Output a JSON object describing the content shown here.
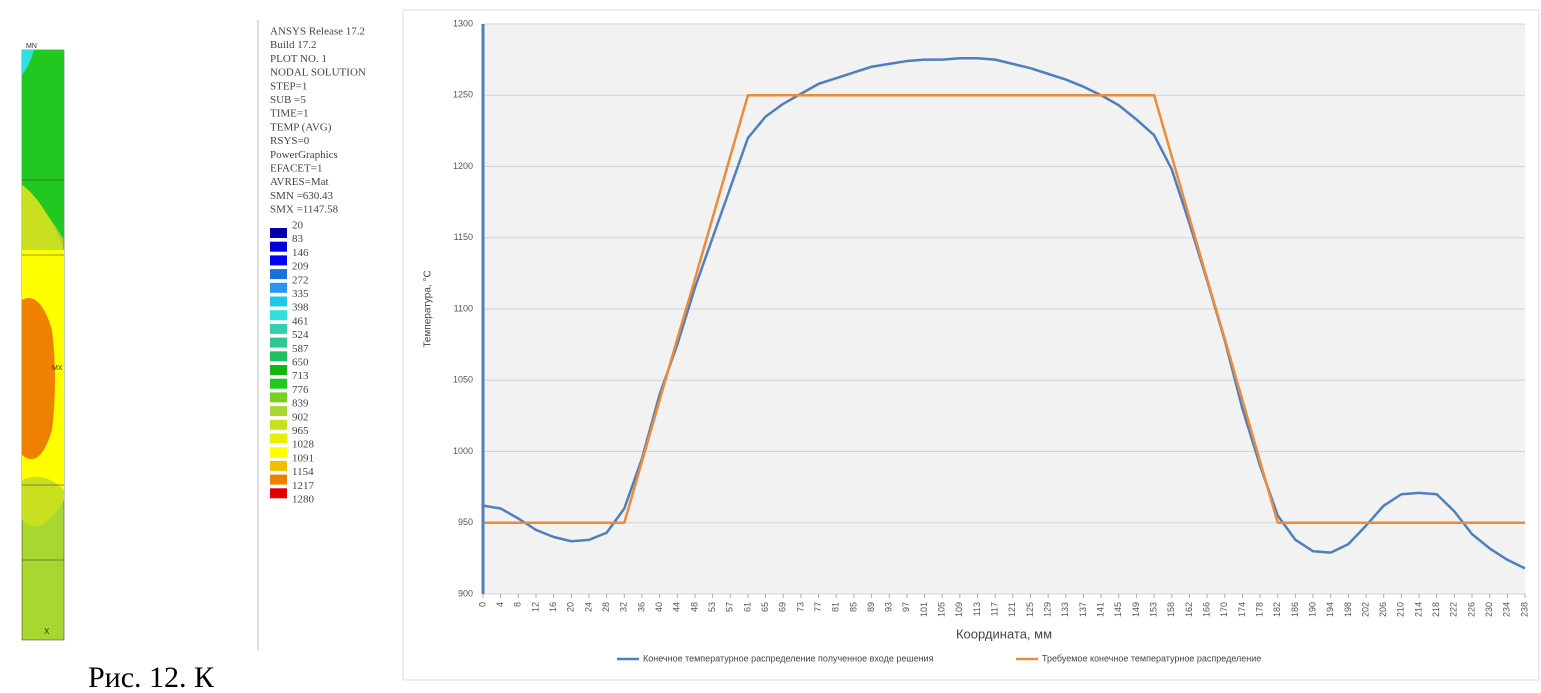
{
  "model": {
    "labels": [
      "MN",
      "MX",
      "X"
    ],
    "info": [
      "ANSYS Release 17.2",
      "Build 17.2",
      "PLOT NO.   1",
      "NODAL SOLUTION",
      "STEP=1",
      "SUB =5",
      "TIME=1",
      "TEMP     (AVG)",
      "RSYS=0",
      "PowerGraphics",
      "EFACET=1",
      "AVRES=Mat",
      "SMN =630.43",
      "SMX =1147.58"
    ],
    "levels": [
      20,
      83,
      146,
      209,
      272,
      335,
      398,
      461,
      524,
      587,
      650,
      713,
      776,
      839,
      902,
      965,
      1028,
      1091,
      1154,
      1217,
      1280
    ],
    "colors": [
      "#0000a8",
      "#0000d8",
      "#0000ff",
      "#1870e0",
      "#2896f0",
      "#20c8e8",
      "#30e0e0",
      "#30d0b0",
      "#30c890",
      "#20c060",
      "#10b810",
      "#20c820",
      "#78d020",
      "#a8d830",
      "#c8e020",
      "#e8f000",
      "#ffff00",
      "#f0c000",
      "#f08000",
      "#e00000"
    ]
  },
  "caption": "Рис. 12. К",
  "chart_data": {
    "type": "line",
    "x_label": "Координата, мм",
    "y_label": "Температура, °С",
    "categories": [
      0,
      4,
      8,
      12,
      16,
      20,
      24,
      28,
      32,
      36,
      40,
      44,
      48,
      53,
      57,
      61,
      65,
      69,
      73,
      77,
      81,
      85,
      89,
      93,
      97,
      101,
      105,
      109,
      113,
      117,
      121,
      125,
      129,
      133,
      137,
      141,
      145,
      149,
      153,
      158,
      162,
      166,
      170,
      174,
      178,
      182,
      186,
      190,
      194,
      198,
      202,
      206,
      210,
      214,
      218,
      222,
      226,
      230,
      234,
      238
    ],
    "series": [
      {
        "name": "Конечное температурное распределение полученное входе решения",
        "color": "#4f7fbf",
        "values": [
          962,
          960,
          953,
          945,
          940,
          937,
          938,
          943,
          960,
          995,
          1040,
          1075,
          1115,
          1150,
          1185,
          1220,
          1235,
          1244,
          1251,
          1258,
          1262,
          1266,
          1270,
          1272,
          1274,
          1275,
          1275,
          1276,
          1276,
          1275,
          1272,
          1269,
          1265,
          1261,
          1256,
          1250,
          1243,
          1233,
          1222,
          1198,
          1160,
          1120,
          1078,
          1030,
          990,
          955,
          938,
          930,
          929,
          935,
          948,
          962,
          970,
          971,
          970,
          958,
          942,
          932,
          924,
          918
        ]
      },
      {
        "name": "Требуемое конечное температурное распределение",
        "color": "#ed8b3a",
        "values": [
          950,
          950,
          950,
          950,
          950,
          950,
          950,
          950,
          950,
          993,
          1036,
          1079,
          1121,
          1164,
          1207,
          1250,
          1250,
          1250,
          1250,
          1250,
          1250,
          1250,
          1250,
          1250,
          1250,
          1250,
          1250,
          1250,
          1250,
          1250,
          1250,
          1250,
          1250,
          1250,
          1250,
          1250,
          1250,
          1250,
          1250,
          1207,
          1164,
          1121,
          1079,
          1036,
          993,
          950,
          950,
          950,
          950,
          950,
          950,
          950,
          950,
          950,
          950,
          950,
          950,
          950,
          950,
          950
        ]
      }
    ],
    "ylim": [
      900,
      1300
    ],
    "yticks": [
      900,
      950,
      1000,
      1050,
      1100,
      1150,
      1200,
      1250,
      1300
    ],
    "grid": true
  }
}
